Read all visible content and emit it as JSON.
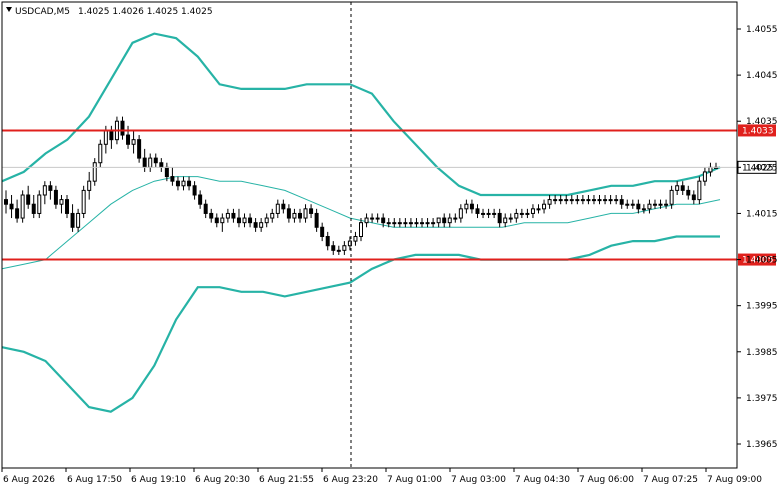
{
  "header": {
    "symbol": "USDCAD,M5",
    "ohlc": "1.4025 1.4026 1.4025 1.4025"
  },
  "chart_data": {
    "type": "candlestick",
    "symbol": "USDCAD",
    "timeframe": "M5",
    "ylim": [
      1.396,
      1.406
    ],
    "y_ticks": [
      "1.4055",
      "1.4045",
      "1.4035",
      "1.4025",
      "1.4015",
      "1.4005",
      "1.3995",
      "1.3985",
      "1.3975",
      "1.3965"
    ],
    "x_ticks": [
      "6 Aug 2026",
      "6 Aug 17:50",
      "6 Aug 19:10",
      "6 Aug 20:30",
      "6 Aug 21:55",
      "6 Aug 23:20",
      "7 Aug 01:00",
      "7 Aug 03:00",
      "7 Aug 04:30",
      "7 Aug 06:00",
      "7 Aug 07:25",
      "7 Aug 09:00"
    ],
    "horizontal_lines": [
      {
        "label": "1.4033",
        "value": 1.4033,
        "color": "#e0201c"
      },
      {
        "label": "1.4005",
        "value": 1.4005,
        "color": "#e0201c"
      }
    ],
    "current_price": {
      "label": "1.4025",
      "value": 1.4025
    },
    "vertical_marker": {
      "time": "6 Aug 23:20"
    },
    "indicators": {
      "bollinger_upper_outer": [
        1.4022,
        1.4024,
        1.4028,
        1.4031,
        1.4036,
        1.4044,
        1.4052,
        1.4054,
        1.4053,
        1.4049,
        1.4043,
        1.4042,
        1.4042,
        1.4042,
        1.4043,
        1.4043,
        1.4043,
        1.4041,
        1.4035,
        1.403,
        1.4025,
        1.4021,
        1.4019,
        1.4019,
        1.4019,
        1.4019,
        1.4019,
        1.402,
        1.4021,
        1.4021,
        1.4022,
        1.4022,
        1.4023,
        1.4025
      ],
      "bollinger_middle": [
        1.4003,
        1.4004,
        1.4005,
        1.4009,
        1.4013,
        1.4017,
        1.402,
        1.4022,
        1.4023,
        1.4023,
        1.4022,
        1.4022,
        1.4021,
        1.402,
        1.4018,
        1.4016,
        1.4014,
        1.4013,
        1.4012,
        1.4012,
        1.4012,
        1.4012,
        1.4012,
        1.4012,
        1.4013,
        1.4013,
        1.4013,
        1.4014,
        1.4015,
        1.4015,
        1.4016,
        1.4017,
        1.4017,
        1.4018
      ],
      "bollinger_lower_outer": [
        1.3986,
        1.3985,
        1.3983,
        1.3978,
        1.3973,
        1.3972,
        1.3975,
        1.3982,
        1.3992,
        1.3999,
        1.3999,
        1.3998,
        1.3998,
        1.3997,
        1.3998,
        1.3999,
        1.4,
        1.4003,
        1.4005,
        1.4006,
        1.4006,
        1.4006,
        1.4005,
        1.4005,
        1.4005,
        1.4005,
        1.4005,
        1.4006,
        1.4008,
        1.4009,
        1.4009,
        1.401,
        1.401,
        1.401
      ]
    },
    "candles": [
      [
        1.4018,
        1.402,
        1.4015,
        1.4017
      ],
      [
        1.4017,
        1.4019,
        1.4014,
        1.4016
      ],
      [
        1.4016,
        1.4018,
        1.4013,
        1.4014
      ],
      [
        1.4014,
        1.402,
        1.4013,
        1.4019
      ],
      [
        1.4019,
        1.4021,
        1.4016,
        1.4017
      ],
      [
        1.4017,
        1.4019,
        1.4014,
        1.4015
      ],
      [
        1.4015,
        1.402,
        1.4014,
        1.4019
      ],
      [
        1.4019,
        1.4022,
        1.4017,
        1.4021
      ],
      [
        1.4021,
        1.4022,
        1.4018,
        1.402
      ],
      [
        1.402,
        1.4021,
        1.4016,
        1.4017
      ],
      [
        1.4017,
        1.4019,
        1.4015,
        1.4018
      ],
      [
        1.4018,
        1.4019,
        1.4014,
        1.4015
      ],
      [
        1.4015,
        1.4017,
        1.4011,
        1.4012
      ],
      [
        1.4012,
        1.4016,
        1.4011,
        1.4015
      ],
      [
        1.4015,
        1.4021,
        1.4014,
        1.402
      ],
      [
        1.402,
        1.4024,
        1.4018,
        1.4022
      ],
      [
        1.4022,
        1.4027,
        1.4021,
        1.4026
      ],
      [
        1.4026,
        1.4031,
        1.4025,
        1.403
      ],
      [
        1.403,
        1.4034,
        1.4028,
        1.4033
      ],
      [
        1.4033,
        1.4034,
        1.4029,
        1.4031
      ],
      [
        1.4031,
        1.4036,
        1.403,
        1.4035
      ],
      [
        1.4035,
        1.4036,
        1.4031,
        1.4032
      ],
      [
        1.4032,
        1.4034,
        1.4029,
        1.403
      ],
      [
        1.403,
        1.4033,
        1.4028,
        1.4031
      ],
      [
        1.4031,
        1.4032,
        1.4026,
        1.4027
      ],
      [
        1.4027,
        1.4029,
        1.4024,
        1.4025
      ],
      [
        1.4025,
        1.4028,
        1.4024,
        1.4027
      ],
      [
        1.4027,
        1.4028,
        1.4025,
        1.4026
      ],
      [
        1.4026,
        1.4027,
        1.4024,
        1.4025
      ],
      [
        1.4025,
        1.4026,
        1.4022,
        1.4023
      ],
      [
        1.4023,
        1.4025,
        1.4021,
        1.4022
      ],
      [
        1.4022,
        1.4023,
        1.402,
        1.4021
      ],
      [
        1.4021,
        1.4023,
        1.402,
        1.4022
      ],
      [
        1.4022,
        1.4023,
        1.402,
        1.4021
      ],
      [
        1.4021,
        1.4022,
        1.4018,
        1.4019
      ],
      [
        1.4019,
        1.402,
        1.4016,
        1.4017
      ],
      [
        1.4017,
        1.4018,
        1.4014,
        1.4015
      ],
      [
        1.4015,
        1.4016,
        1.4013,
        1.4014
      ],
      [
        1.4014,
        1.4015,
        1.4012,
        1.4013
      ],
      [
        1.4013,
        1.4015,
        1.4011,
        1.4014
      ],
      [
        1.4014,
        1.4016,
        1.4013,
        1.4015
      ],
      [
        1.4015,
        1.4016,
        1.4013,
        1.4014
      ],
      [
        1.4014,
        1.4016,
        1.4012,
        1.4013
      ],
      [
        1.4013,
        1.4015,
        1.4012,
        1.4014
      ],
      [
        1.4014,
        1.4015,
        1.4012,
        1.4013
      ],
      [
        1.4013,
        1.4014,
        1.4011,
        1.4012
      ],
      [
        1.4012,
        1.4014,
        1.4011,
        1.4013
      ],
      [
        1.4013,
        1.4015,
        1.4012,
        1.4014
      ],
      [
        1.4014,
        1.4016,
        1.4013,
        1.4015
      ],
      [
        1.4015,
        1.4018,
        1.4014,
        1.4017
      ],
      [
        1.4017,
        1.4018,
        1.4015,
        1.4016
      ],
      [
        1.4016,
        1.4017,
        1.4013,
        1.4014
      ],
      [
        1.4014,
        1.4016,
        1.4013,
        1.4015
      ],
      [
        1.4015,
        1.4016,
        1.4013,
        1.4014
      ],
      [
        1.4014,
        1.4017,
        1.4013,
        1.4016
      ],
      [
        1.4016,
        1.4017,
        1.4014,
        1.4015
      ],
      [
        1.4015,
        1.4016,
        1.4011,
        1.4012
      ],
      [
        1.4012,
        1.4013,
        1.4009,
        1.401
      ],
      [
        1.401,
        1.4011,
        1.4007,
        1.4008
      ],
      [
        1.4008,
        1.4009,
        1.4006,
        1.4007
      ],
      [
        1.4007,
        1.4008,
        1.4006,
        1.4007
      ],
      [
        1.4007,
        1.4009,
        1.4006,
        1.4008
      ],
      [
        1.4008,
        1.401,
        1.4007,
        1.4009
      ],
      [
        1.4009,
        1.4011,
        1.4008,
        1.401
      ],
      [
        1.401,
        1.4014,
        1.4009,
        1.4013
      ],
      [
        1.4013,
        1.4015,
        1.4012,
        1.4014
      ],
      [
        1.4014,
        1.4015,
        1.4013,
        1.4014
      ],
      [
        1.4014,
        1.4015,
        1.4013,
        1.4014
      ],
      [
        1.4014,
        1.4015,
        1.4012,
        1.4013
      ],
      [
        1.4013,
        1.4014,
        1.4012,
        1.4013
      ],
      [
        1.4013,
        1.4014,
        1.4012,
        1.4013
      ],
      [
        1.4013,
        1.4014,
        1.4012,
        1.4013
      ],
      [
        1.4013,
        1.4014,
        1.4012,
        1.4013
      ],
      [
        1.4013,
        1.4014,
        1.4012,
        1.4013
      ],
      [
        1.4013,
        1.4014,
        1.4012,
        1.4013
      ],
      [
        1.4013,
        1.4014,
        1.4012,
        1.4013
      ],
      [
        1.4013,
        1.4014,
        1.4012,
        1.4013
      ],
      [
        1.4013,
        1.4014,
        1.4012,
        1.4013
      ],
      [
        1.4013,
        1.4014,
        1.4012,
        1.4014
      ],
      [
        1.4014,
        1.4015,
        1.4012,
        1.4013
      ],
      [
        1.4013,
        1.4015,
        1.4012,
        1.4014
      ],
      [
        1.4014,
        1.4015,
        1.4013,
        1.4014
      ],
      [
        1.4014,
        1.4017,
        1.4013,
        1.4016
      ],
      [
        1.4016,
        1.4018,
        1.4015,
        1.4017
      ],
      [
        1.4017,
        1.4018,
        1.4015,
        1.4016
      ],
      [
        1.4016,
        1.4017,
        1.4014,
        1.4015
      ],
      [
        1.4015,
        1.4016,
        1.4014,
        1.4015
      ],
      [
        1.4015,
        1.4016,
        1.4014,
        1.4015
      ],
      [
        1.4015,
        1.4016,
        1.4014,
        1.4015
      ],
      [
        1.4015,
        1.4016,
        1.4012,
        1.4013
      ],
      [
        1.4013,
        1.4015,
        1.4012,
        1.4014
      ],
      [
        1.4014,
        1.4015,
        1.4013,
        1.4014
      ],
      [
        1.4014,
        1.4016,
        1.4013,
        1.4015
      ],
      [
        1.4015,
        1.4016,
        1.4014,
        1.4015
      ],
      [
        1.4015,
        1.4016,
        1.4014,
        1.4015
      ],
      [
        1.4015,
        1.4017,
        1.4014,
        1.4016
      ],
      [
        1.4016,
        1.4017,
        1.4015,
        1.4016
      ],
      [
        1.4016,
        1.4018,
        1.4015,
        1.4017
      ],
      [
        1.4017,
        1.4019,
        1.4016,
        1.4018
      ],
      [
        1.4018,
        1.4019,
        1.4017,
        1.4018
      ],
      [
        1.4018,
        1.4019,
        1.4017,
        1.4018
      ],
      [
        1.4018,
        1.4019,
        1.4017,
        1.4018
      ],
      [
        1.4018,
        1.4019,
        1.4017,
        1.4018
      ],
      [
        1.4018,
        1.4019,
        1.4017,
        1.4018
      ],
      [
        1.4018,
        1.4019,
        1.4017,
        1.4018
      ],
      [
        1.4018,
        1.4019,
        1.4017,
        1.4018
      ],
      [
        1.4018,
        1.4019,
        1.4017,
        1.4018
      ],
      [
        1.4018,
        1.4019,
        1.4017,
        1.4018
      ],
      [
        1.4018,
        1.4019,
        1.4017,
        1.4018
      ],
      [
        1.4018,
        1.4019,
        1.4017,
        1.4018
      ],
      [
        1.4018,
        1.4019,
        1.4017,
        1.4018
      ],
      [
        1.4018,
        1.4019,
        1.4016,
        1.4017
      ],
      [
        1.4017,
        1.4018,
        1.4016,
        1.4017
      ],
      [
        1.4017,
        1.4018,
        1.4016,
        1.4017
      ],
      [
        1.4017,
        1.4018,
        1.4015,
        1.4016
      ],
      [
        1.4016,
        1.4017,
        1.4015,
        1.4016
      ],
      [
        1.4016,
        1.4018,
        1.4015,
        1.4017
      ],
      [
        1.4017,
        1.4018,
        1.4016,
        1.4017
      ],
      [
        1.4017,
        1.4018,
        1.4016,
        1.4017
      ],
      [
        1.4017,
        1.4018,
        1.4016,
        1.4017
      ],
      [
        1.4017,
        1.4021,
        1.4016,
        1.402
      ],
      [
        1.402,
        1.4022,
        1.4019,
        1.4021
      ],
      [
        1.4021,
        1.4022,
        1.4019,
        1.402
      ],
      [
        1.402,
        1.4021,
        1.4018,
        1.4019
      ],
      [
        1.4019,
        1.402,
        1.4017,
        1.4018
      ],
      [
        1.4018,
        1.4023,
        1.4017,
        1.4022
      ],
      [
        1.4022,
        1.4025,
        1.4021,
        1.4024
      ],
      [
        1.4024,
        1.4026,
        1.4023,
        1.4025
      ],
      [
        1.4025,
        1.4026,
        1.4025,
        1.4025
      ]
    ]
  }
}
